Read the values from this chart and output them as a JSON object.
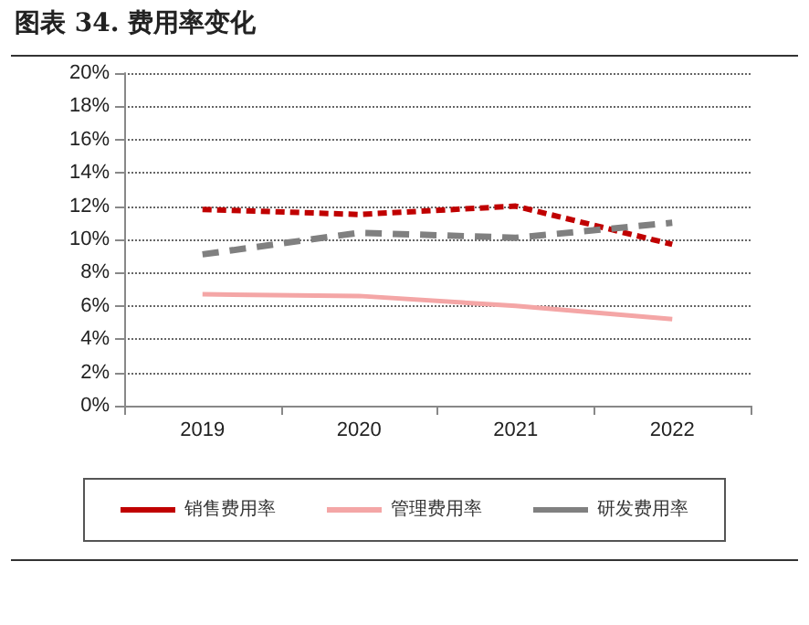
{
  "chart_data": {
    "type": "line",
    "title": "图表 34. 费用率变化",
    "categories": [
      "2019",
      "2020",
      "2021",
      "2022"
    ],
    "series": [
      {
        "name": "销售费用率",
        "color": "#c00000",
        "line_style": "dotted",
        "values": [
          11.8,
          11.5,
          12.0,
          9.7
        ]
      },
      {
        "name": "管理费用率",
        "color": "#f4a6a6",
        "line_style": "solid",
        "values": [
          6.7,
          6.6,
          6.0,
          5.2
        ]
      },
      {
        "name": "研发费用率",
        "color": "#808080",
        "line_style": "dashed",
        "values": [
          9.1,
          10.4,
          10.1,
          11.0
        ]
      }
    ],
    "ylim": [
      0,
      20
    ],
    "yticks": [
      {
        "value": 0,
        "label": "0%"
      },
      {
        "value": 2,
        "label": "2%"
      },
      {
        "value": 4,
        "label": "4%"
      },
      {
        "value": 6,
        "label": "6%"
      },
      {
        "value": 8,
        "label": "8%"
      },
      {
        "value": 10,
        "label": "10%"
      },
      {
        "value": 12,
        "label": "12%"
      },
      {
        "value": 14,
        "label": "14%"
      },
      {
        "value": 16,
        "label": "16%"
      },
      {
        "value": 18,
        "label": "18%"
      },
      {
        "value": 20,
        "label": "20%"
      }
    ],
    "grid": "y",
    "legend": "bottom",
    "marker": "none"
  }
}
